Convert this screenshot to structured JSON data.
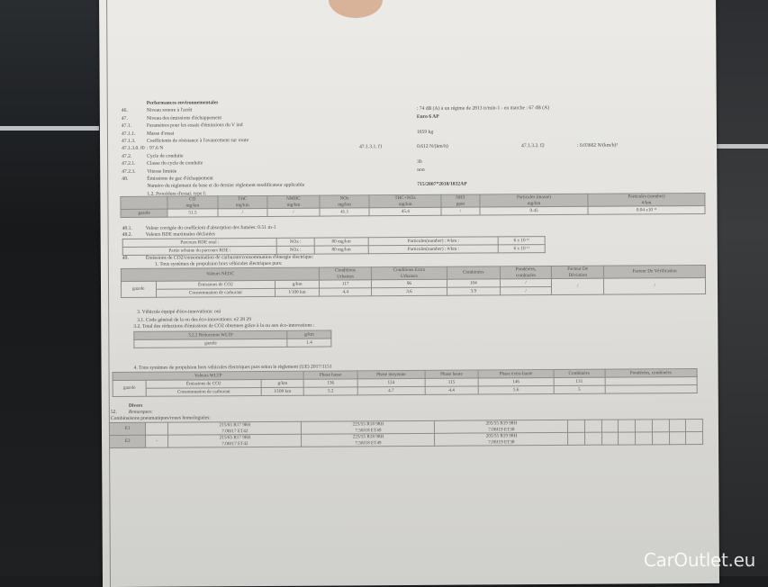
{
  "watermark": "CarOutlet.eu",
  "header_lines": [
    {
      "num": "",
      "label": "Performances environnementales",
      "value": "",
      "bold": true
    },
    {
      "num": "46.",
      "label": "Niveau sonore à l'arrêt",
      "value": ": 74 dB (A)  à un régime de 2813 tr/min-1 - en marche :  67 dB (A)"
    },
    {
      "num": "47.",
      "label": "Niveau des émissions d'échappement",
      "value": "Euro 6 AP",
      "bold_value": true
    },
    {
      "num": "47.1.",
      "label": "Paramètres pour les essais d'émissions du V ind",
      "value": ""
    },
    {
      "num": "47.1.1.",
      "label": "Masse d'essai",
      "value": "1659          kg"
    },
    {
      "num": "47.1.3.",
      "label": "Coefficients de résistance à l'avancement sur route",
      "value": ""
    },
    {
      "num": "47.1.3.0. f0",
      "label": "       : 97.6 N",
      "value": "0.612 N/(km/h)",
      "mid": "47.1.3.1.  f1",
      "right_label": "47.1.3.2.  f2",
      "right_value": ": 0.03662 N/(km/h)²"
    },
    {
      "num": "47.2.",
      "label": "Cycle de conduite",
      "value": ""
    },
    {
      "num": "47.2.1.",
      "label": "Classe du cycle de conduite",
      "value": "3b"
    },
    {
      "num": "47.2.3.",
      "label": "Vitesse limitée",
      "value": "non"
    },
    {
      "num": "48.",
      "label": "Émissions de gaz d'échappement",
      "value": ""
    },
    {
      "num": "",
      "label": "Numéro du règlement de base et du dernier règlement modificateur applicable",
      "value": "715/2007*2018/1832AP",
      "bold_value": true
    },
    {
      "num": "",
      "label": "1.2. Procédure d'essai: type I:",
      "value": ""
    }
  ],
  "emissions_table": {
    "headers": [
      "",
      "CO\nmg/km",
      "THC\nmg/km",
      "NMHC\nmg/km",
      "NOx\nmg/km",
      "THC+NOx\nmg/km",
      "NH3\nppm",
      "Particules (masse)\nmg/km",
      "Particules (nombre)\n#/km"
    ],
    "rows": [
      [
        "gazole",
        "51.5",
        "/",
        "/",
        "41.1",
        "45.4",
        "/",
        "0.45",
        "0.04 x10 ¹¹"
      ]
    ]
  },
  "line_48_1": {
    "num": "48.1.",
    "text": "Valeur corrigée du coefficient d'absorption des fumées: 0.51 m-1"
  },
  "line_48_2": {
    "num": "48.2.",
    "text": "Valeurs RDE maximales déclarées"
  },
  "rde_table": {
    "rows": [
      [
        "Parcours RDE total :",
        "NOx :",
        "80 mg/km",
        "Particules(number) : #/km :",
        "6 x 10 ¹¹"
      ],
      [
        "Partie urbaine du parcours RDE     :",
        "NOx :",
        "80 mg/km",
        "Particules(number) : #/km :",
        "6 x 10 ¹¹"
      ]
    ]
  },
  "line_49": {
    "num": "49.",
    "text": "Émissions de CO2/consommation de carburant/consommation d'énergie électrique:"
  },
  "line_49_1": "1. Tous systèmes de propulsion hors véhicules électriques purs:",
  "nedc_table": {
    "headers": [
      "Valeurs NEDC",
      "",
      "",
      "Conditions\nUrbaines",
      "Conditions Extra\nUrbaines",
      "Combinées",
      "Pondérées,\ncombinées",
      "Facteur De\nDéviation",
      "Facteur De Vérification"
    ],
    "fuel": "gazole",
    "rows": [
      [
        "Émissions de CO2",
        "g/km",
        "117",
        "96",
        "104",
        "/",
        "/",
        "/"
      ],
      [
        "Consommation de carburant",
        "l/100 km",
        "4.4",
        "3.6",
        "3.9",
        "/"
      ]
    ]
  },
  "eco": {
    "line_3": "3. Véhicule équipé d'éco-innovations: oui",
    "line_3_1": "3.1. Code général de la ou des éco-innovations: e2 28 29",
    "line_3_2": "3.2. Total des réductions d'émissions de CO2 obtenues grâce à la ou aux éco-innovations :",
    "table": {
      "headers": [
        "3.2.2 Réductions WLTP",
        "g/km"
      ],
      "rows": [
        [
          "gazole",
          "1.4"
        ]
      ]
    }
  },
  "line_4": "4. Tous systèmes de propulsion hors véhicules électriques purs selon le règlement (UE) 2017/1151",
  "wltp_table": {
    "headers": [
      "Valeurs WLTP",
      "",
      "",
      "Phase basse",
      "Phase moyenne",
      "Phase haute",
      "Phase extra-haute",
      "Combinées",
      "Pondérées, combinées"
    ],
    "fuel": "gazole",
    "rows": [
      [
        "Émissions de CO2",
        "g/km",
        "136",
        "124",
        "115",
        "146",
        "131",
        ""
      ],
      [
        "Consommation de carburant",
        "l/100 km",
        "5.2",
        "4.7",
        "4.4",
        "5.6",
        "5",
        ""
      ]
    ]
  },
  "divers": {
    "title": "Divers",
    "num_52": "52.",
    "remarques": "Remarques:",
    "combinaisons": "Combinaisons pneumatiques/roues homologuées:",
    "tyres": [
      [
        "E1",
        "",
        "215/65 R17 98H\n7.00J17 ET42",
        "225/55 R18 98H\n7.50J18 ET49",
        "205/55 R19 98H\n7.00J19 ET38"
      ],
      [
        "E2",
        "-",
        "215/65 R17 98H\n7.00J17 ET42",
        "225/55 R18 98H\n7.50J18 ET49",
        "205/55 R19 98H\n7.00J19 ET38"
      ]
    ]
  }
}
